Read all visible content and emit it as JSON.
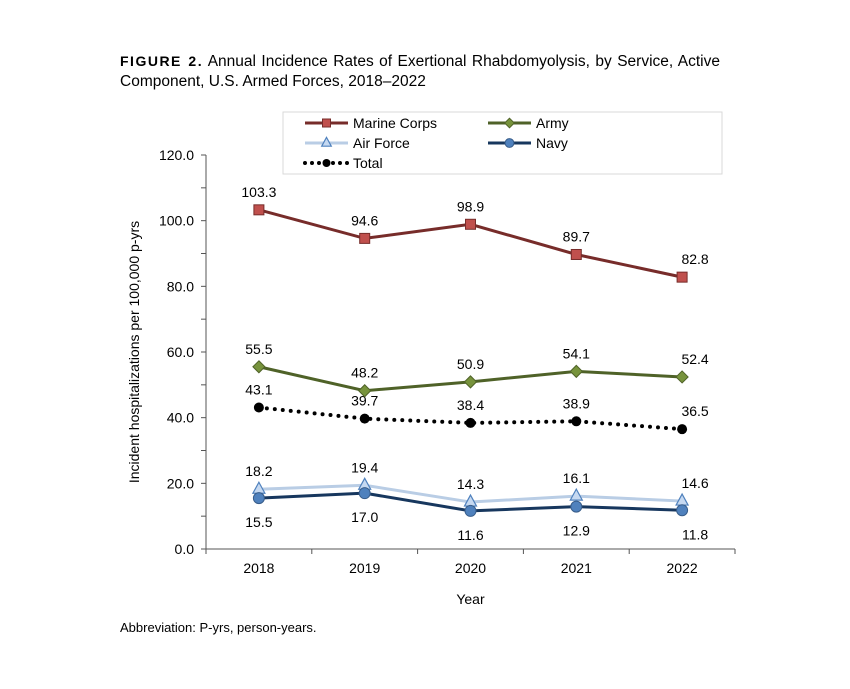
{
  "figure_label": "FIGURE 2.",
  "note": "Abbreviation: P-yrs, person-years.",
  "chart_data": {
    "type": "line",
    "title": "Annual Incidence Rates of Exertional Rhabdomyolysis, by Service, Active Component, U.S. Armed Forces, 2018–2022",
    "xlabel": "Year",
    "ylabel": "Incident hospitalizations per 100,000 p-yrs",
    "ylim": [
      0,
      120
    ],
    "yticks": [
      "0.0",
      "20.0",
      "40.0",
      "60.0",
      "80.0",
      "100.0",
      "120.0"
    ],
    "categories": [
      "2018",
      "2019",
      "2020",
      "2021",
      "2022"
    ],
    "grid": false,
    "legend_placement": "top",
    "series": [
      {
        "name": "Marine Corps",
        "values": [
          103.3,
          94.6,
          98.9,
          89.7,
          82.8
        ],
        "labels": [
          "103.3",
          "94.6",
          "98.9",
          "89.7",
          "82.8"
        ],
        "color": "#772c2a",
        "marker_color": "#c0504d",
        "marker": "square",
        "label_pos": "above"
      },
      {
        "name": "Army",
        "values": [
          55.5,
          48.2,
          50.9,
          54.1,
          52.4
        ],
        "labels": [
          "55.5",
          "48.2",
          "50.9",
          "54.1",
          "52.4"
        ],
        "color": "#4f6228",
        "marker_color": "#77933c",
        "marker": "diamond",
        "label_pos": "above"
      },
      {
        "name": "Air Force",
        "values": [
          18.2,
          19.4,
          14.3,
          16.1,
          14.6
        ],
        "labels": [
          "18.2",
          "19.4",
          "14.3",
          "16.1",
          "14.6"
        ],
        "color": "#b9cde5",
        "marker_color": "#c6d9f1",
        "marker": "triangle",
        "label_pos": "above"
      },
      {
        "name": "Navy",
        "values": [
          15.5,
          17.0,
          11.6,
          12.9,
          11.8
        ],
        "labels": [
          "15.5",
          "17.0",
          "11.6",
          "12.9",
          "11.8"
        ],
        "color": "#17375e",
        "marker_color": "#4f81bd",
        "marker": "circle",
        "label_pos": "below"
      },
      {
        "name": "Total",
        "values": [
          43.1,
          39.7,
          38.4,
          38.9,
          36.5
        ],
        "labels": [
          "43.1",
          "39.7",
          "38.4",
          "38.9",
          "36.5"
        ],
        "color": "#000000",
        "marker_color": "#000000",
        "marker": "circle",
        "dotted": true,
        "label_pos": "above"
      }
    ]
  }
}
